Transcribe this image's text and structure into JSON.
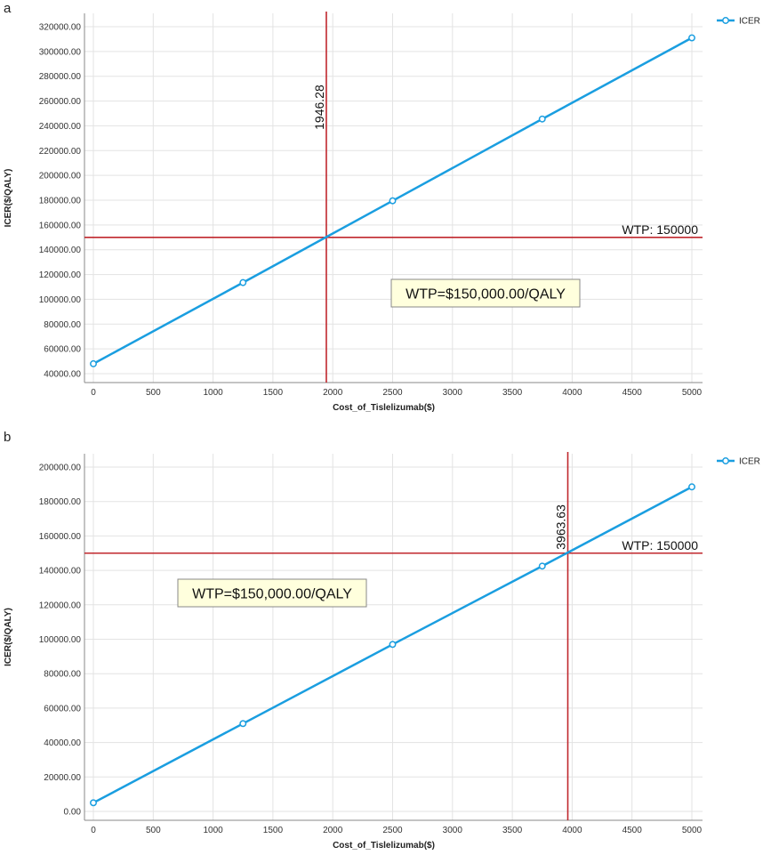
{
  "chart_data": [
    {
      "panel_label": "a",
      "type": "line",
      "xlabel": "Cost_of_Tislelizumab($)",
      "ylabel": "ICER($/QALY)",
      "xlim": [
        0,
        5000
      ],
      "ylim": [
        40000,
        320000
      ],
      "x_ticks": [
        0,
        500,
        1000,
        1500,
        2000,
        2500,
        3000,
        3500,
        4000,
        4500,
        5000
      ],
      "y_ticks": [
        40000,
        60000,
        80000,
        100000,
        120000,
        140000,
        160000,
        180000,
        200000,
        220000,
        240000,
        260000,
        280000,
        300000,
        320000
      ],
      "y_tick_labels": [
        "40000.00",
        "60000.00",
        "80000.00",
        "100000.00",
        "120000.00",
        "140000.00",
        "160000.00",
        "180000.00",
        "200000.00",
        "220000.00",
        "240000.00",
        "260000.00",
        "280000.00",
        "300000.00",
        "320000.00"
      ],
      "grid": true,
      "legend": {
        "position": "top-right",
        "entries": [
          "ICER"
        ]
      },
      "series": [
        {
          "name": "ICER",
          "color": "#1a9ee0",
          "x": [
            0,
            1250,
            2500,
            3750,
            5000
          ],
          "y": [
            48000,
            113500,
            179500,
            245500,
            311000
          ]
        }
      ],
      "threshold_y": 150000,
      "threshold_label": "WTP: 150000",
      "threshold_color": "#c0272d",
      "crossover_x": 1946.28,
      "crossover_label": "1946.28",
      "annotation": "WTP=$150,000.00/QALY",
      "annotation_pos": "center-right"
    },
    {
      "panel_label": "b",
      "type": "line",
      "xlabel": "Cost_of_Tislelizumab($)",
      "ylabel": "ICER($/QALY)",
      "xlim": [
        0,
        5000
      ],
      "ylim": [
        0,
        200000
      ],
      "x_ticks": [
        0,
        500,
        1000,
        1500,
        2000,
        2500,
        3000,
        3500,
        4000,
        4500,
        5000
      ],
      "y_ticks": [
        0,
        20000,
        40000,
        60000,
        80000,
        100000,
        120000,
        140000,
        160000,
        180000,
        200000
      ],
      "y_tick_labels": [
        "0.00",
        "20000.00",
        "40000.00",
        "60000.00",
        "80000.00",
        "100000.00",
        "120000.00",
        "140000.00",
        "160000.00",
        "180000.00",
        "200000.00"
      ],
      "grid": true,
      "legend": {
        "position": "top-right",
        "entries": [
          "ICER"
        ]
      },
      "series": [
        {
          "name": "ICER",
          "color": "#1a9ee0",
          "x": [
            0,
            1250,
            2500,
            3750,
            5000
          ],
          "y": [
            5000,
            51000,
            97000,
            142500,
            188500
          ]
        }
      ],
      "threshold_y": 150000,
      "threshold_label": "WTP: 150000",
      "threshold_color": "#c0272d",
      "crossover_x": 3963.63,
      "crossover_label": "3963.63",
      "annotation": "WTP=$150,000.00/QALY",
      "annotation_pos": "upper-left"
    }
  ]
}
